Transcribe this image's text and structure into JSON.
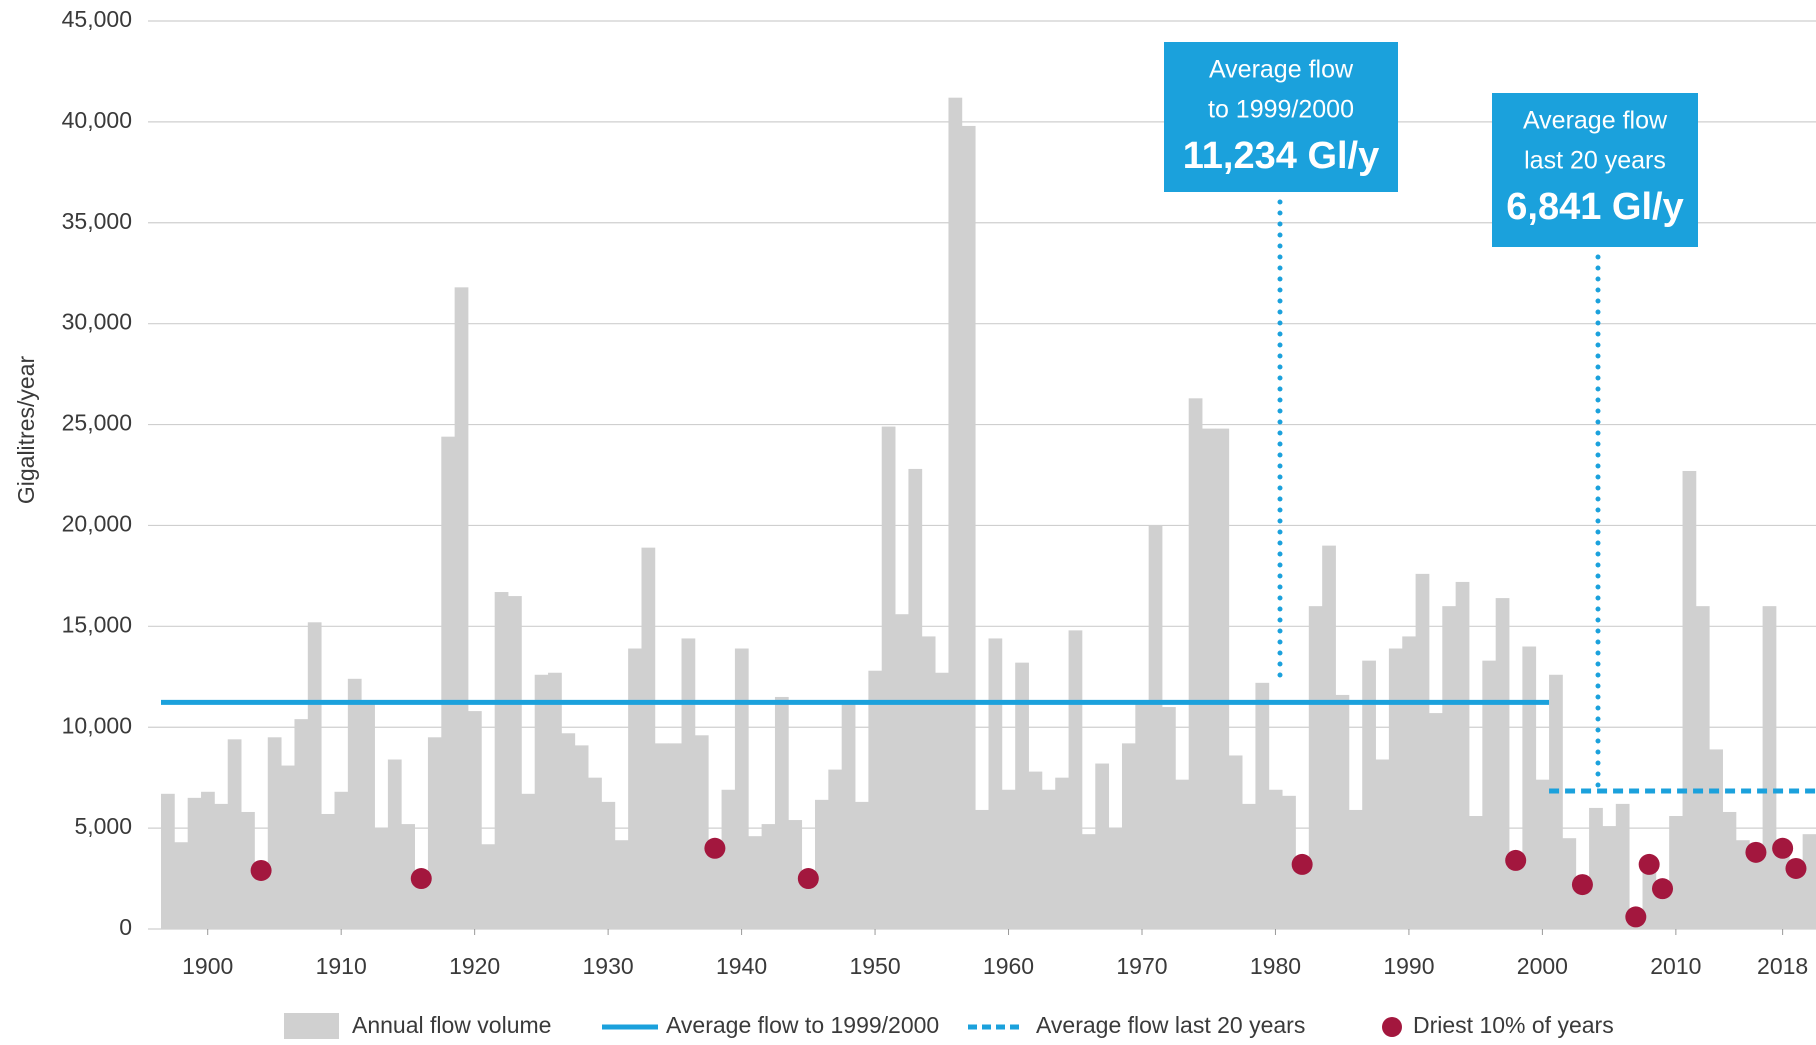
{
  "chart_data": {
    "type": "bar",
    "y_label": "Gigalitres/year",
    "x": [
      1897,
      1898,
      1899,
      1900,
      1901,
      1902,
      1903,
      1904,
      1905,
      1906,
      1907,
      1908,
      1909,
      1910,
      1911,
      1912,
      1913,
      1914,
      1915,
      1916,
      1917,
      1918,
      1919,
      1920,
      1921,
      1922,
      1923,
      1924,
      1925,
      1926,
      1927,
      1928,
      1929,
      1930,
      1931,
      1932,
      1933,
      1934,
      1935,
      1936,
      1937,
      1938,
      1939,
      1940,
      1941,
      1942,
      1943,
      1944,
      1945,
      1946,
      1947,
      1948,
      1949,
      1950,
      1951,
      1952,
      1953,
      1954,
      1955,
      1956,
      1957,
      1958,
      1959,
      1960,
      1961,
      1962,
      1963,
      1964,
      1965,
      1966,
      1967,
      1968,
      1969,
      1970,
      1971,
      1972,
      1973,
      1974,
      1975,
      1976,
      1977,
      1978,
      1979,
      1980,
      1981,
      1982,
      1983,
      1984,
      1985,
      1986,
      1987,
      1988,
      1989,
      1990,
      1991,
      1992,
      1993,
      1994,
      1995,
      1996,
      1997,
      1998,
      1999,
      2000,
      2001,
      2002,
      2003,
      2004,
      2005,
      2006,
      2007,
      2008,
      2009,
      2010,
      2011,
      2012,
      2013,
      2014,
      2015,
      2016,
      2017,
      2018,
      2019,
      2020
    ],
    "xlim": [
      1897,
      2021
    ],
    "xticks": [
      1900,
      1910,
      1920,
      1930,
      1940,
      1950,
      1960,
      1970,
      1980,
      1990,
      2000,
      2010,
      2018
    ],
    "ylim": [
      0,
      45000
    ],
    "yticks": [
      0,
      {
        "value": 5000,
        "label": "5,000"
      },
      {
        "value": 10000,
        "label": "10,000"
      },
      {
        "value": 15000,
        "label": "15,000"
      },
      {
        "value": 20000,
        "label": "20,000"
      },
      {
        "value": 25000,
        "label": "25,000"
      },
      {
        "value": 30000,
        "label": "30,000"
      },
      {
        "value": 35000,
        "label": "35,000"
      },
      {
        "value": 40000,
        "label": "40,000"
      },
      {
        "value": 45000,
        "label": "45,000"
      }
    ],
    "grid": true,
    "series": [
      {
        "name": "Annual flow volume",
        "color": "#d0d0d0",
        "values": [
          6700,
          4300,
          6500,
          6800,
          6200,
          9400,
          5800,
          2900,
          9500,
          8100,
          10400,
          15200,
          5700,
          6800,
          12400,
          11300,
          5000,
          8400,
          5200,
          2500,
          9500,
          24400,
          31800,
          10800,
          4200,
          16700,
          16500,
          6700,
          12600,
          12700,
          9700,
          9100,
          7500,
          6300,
          4400,
          13900,
          18900,
          9200,
          9200,
          14400,
          9600,
          4000,
          6900,
          13900,
          4600,
          5200,
          11500,
          5400,
          2500,
          6400,
          7900,
          11200,
          6300,
          12800,
          24900,
          15600,
          22800,
          14500,
          12700,
          41200,
          39800,
          5900,
          14400,
          6900,
          13200,
          7800,
          6900,
          7500,
          14800,
          4700,
          8200,
          5000,
          9200,
          11200,
          20000,
          11000,
          7400,
          26300,
          24800,
          24800,
          8600,
          6200,
          12200,
          6900,
          6600,
          3200,
          16000,
          19000,
          11600,
          5900,
          13300,
          8400,
          13900,
          14500,
          17600,
          10700,
          16000,
          17200,
          5600,
          13300,
          16400,
          3400,
          14000,
          7400,
          12600,
          4500,
          2200,
          6000,
          5100,
          6200,
          600,
          3200,
          2000,
          5600,
          22700,
          16000,
          8900,
          5800,
          4400,
          3800,
          16000,
          4000,
          3000,
          4700
        ]
      },
      {
        "name": "Driest 10% of years",
        "color": "#a3173e",
        "values": [
          null,
          null,
          null,
          null,
          null,
          null,
          null,
          2900,
          null,
          null,
          null,
          null,
          null,
          null,
          null,
          null,
          null,
          null,
          null,
          2500,
          null,
          null,
          null,
          null,
          null,
          null,
          null,
          null,
          null,
          null,
          null,
          null,
          null,
          null,
          null,
          null,
          null,
          null,
          null,
          null,
          null,
          4000,
          null,
          null,
          null,
          null,
          null,
          null,
          2500,
          null,
          null,
          null,
          null,
          null,
          null,
          null,
          null,
          null,
          null,
          null,
          null,
          null,
          null,
          null,
          null,
          null,
          null,
          null,
          null,
          null,
          null,
          null,
          null,
          null,
          null,
          null,
          null,
          null,
          null,
          null,
          null,
          null,
          null,
          null,
          null,
          3200,
          null,
          null,
          null,
          null,
          null,
          null,
          null,
          null,
          null,
          null,
          null,
          null,
          null,
          null,
          null,
          3400,
          null,
          null,
          null,
          null,
          2200,
          null,
          null,
          null,
          600,
          3200,
          2000,
          null,
          null,
          null,
          null,
          null,
          null,
          3800,
          null,
          4000,
          3000,
          null
        ]
      }
    ],
    "reference_lines": [
      {
        "name": "Average flow to 1999/2000",
        "value": 11234,
        "from": 1897,
        "to": 2001,
        "color": "#1ba1dc",
        "dashed": false,
        "label": [
          "Average flow",
          "to 1999/2000"
        ],
        "value_label": "11,234 Gl/y"
      },
      {
        "name": "Average flow last 20 years",
        "value": 6841,
        "from": 2001,
        "to": 2021,
        "color": "#1ba1dc",
        "dashed": true,
        "label": [
          "Average flow",
          "last 20 years"
        ],
        "value_label": "6,841 Gl/y"
      }
    ]
  }
}
